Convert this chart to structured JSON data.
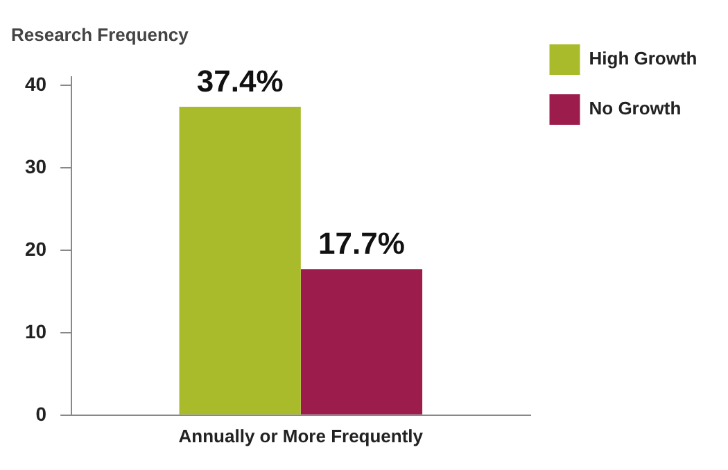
{
  "chart_data": {
    "type": "bar",
    "title": "Research Frequency",
    "categories": [
      "Annually or More Frequently"
    ],
    "series": [
      {
        "name": "High Growth",
        "color": "#a9bb2a",
        "values": [
          37.4
        ],
        "value_labels": [
          "37.4%"
        ]
      },
      {
        "name": "No Growth",
        "color": "#9c1c4c",
        "values": [
          17.7
        ],
        "value_labels": [
          "17.7%"
        ]
      }
    ],
    "ylim": [
      0,
      41
    ],
    "yticks": [
      0,
      10,
      20,
      30,
      40
    ],
    "grid": false,
    "legend": "top right"
  }
}
